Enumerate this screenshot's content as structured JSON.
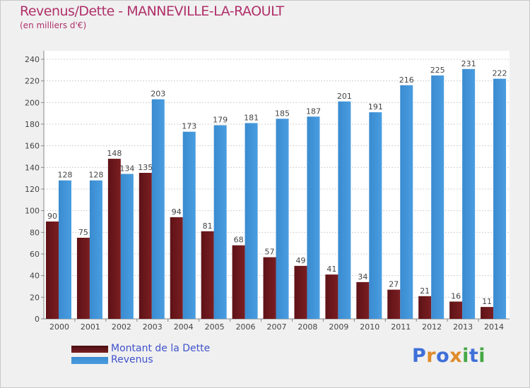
{
  "title": "Revenus/Dette - MANNEVILLE-LA-RAOULT",
  "subtitle": "(en milliers d'€)",
  "logo": {
    "text": "Proxiti",
    "letters": [
      "P",
      "r",
      "o",
      "x",
      "i",
      "t",
      "i"
    ],
    "colors": [
      "#3f6fd8",
      "#e08a2a",
      "#3f6fd8",
      "#e08a2a",
      "#45a845",
      "#3f6fd8",
      "#45a845"
    ]
  },
  "chart_data": {
    "type": "bar",
    "categories": [
      "2000",
      "2001",
      "2002",
      "2003",
      "2004",
      "2005",
      "2006",
      "2007",
      "2008",
      "2009",
      "2010",
      "2011",
      "2012",
      "2013",
      "2014"
    ],
    "series": [
      {
        "name": "Montant de la Dette",
        "color": "#7a1e22",
        "values": [
          90,
          75,
          148,
          135,
          94,
          81,
          68,
          57,
          49,
          41,
          34,
          27,
          21,
          16,
          11
        ]
      },
      {
        "name": "Revenus",
        "color": "#4a9de0",
        "values": [
          128,
          128,
          134,
          203,
          173,
          179,
          181,
          185,
          187,
          201,
          191,
          216,
          225,
          231,
          222
        ]
      }
    ],
    "ylim": [
      0,
      240
    ],
    "yticks": [
      0,
      20,
      40,
      60,
      80,
      100,
      120,
      140,
      160,
      180,
      200,
      220,
      240
    ],
    "grid": true,
    "legend": "bottom-left"
  }
}
